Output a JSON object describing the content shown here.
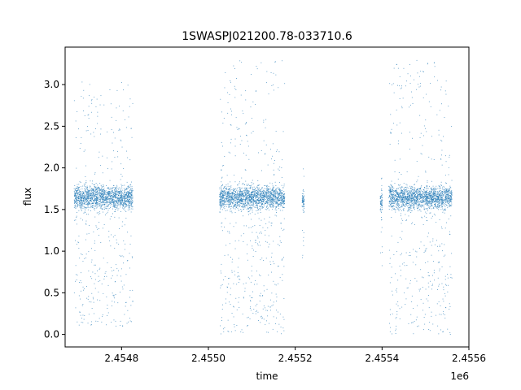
{
  "chart_data": {
    "type": "scatter",
    "title": "1SWASPJ021200.78-033710.6",
    "xlabel": "time",
    "ylabel": "flux",
    "x_offset_label": "1e6",
    "xlim": [
      2454670,
      2455600
    ],
    "ylim": [
      -0.15,
      3.45
    ],
    "x_ticks": [
      2454800,
      2455000,
      2455200,
      2455400,
      2455600
    ],
    "x_tick_labels": [
      "2.4548",
      "2.4550",
      "2.4552",
      "2.4554",
      "2.4556"
    ],
    "y_ticks": [
      0.0,
      0.5,
      1.0,
      1.5,
      2.0,
      2.5,
      3.0
    ],
    "y_tick_labels": [
      "0.0",
      "0.5",
      "1.0",
      "1.5",
      "2.0",
      "2.5",
      "3.0"
    ],
    "grid": false,
    "marker_color": "#1f77b4",
    "seasons": [
      {
        "x_start": 2454690,
        "x_end": 2454825,
        "median_flux": 1.65,
        "flux_min": 0.1,
        "flux_max": 3.05
      },
      {
        "x_start": 2455025,
        "x_end": 2455175,
        "median_flux": 1.65,
        "flux_min": 0.0,
        "flux_max": 3.3
      },
      {
        "x_start": 2455215,
        "x_end": 2455220,
        "median_flux": 1.6,
        "flux_min": 0.8,
        "flux_max": 2.05
      },
      {
        "x_start": 2455395,
        "x_end": 2455400,
        "median_flux": 1.6,
        "flux_min": 0.75,
        "flux_max": 2.0
      },
      {
        "x_start": 2455415,
        "x_end": 2455560,
        "median_flux": 1.65,
        "flux_min": 0.0,
        "flux_max": 3.3
      }
    ]
  }
}
